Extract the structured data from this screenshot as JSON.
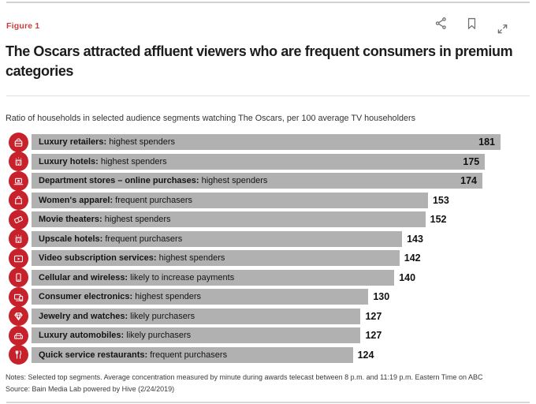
{
  "figure_label": "Figure 1",
  "toolbar": {
    "icons": [
      "share-icon",
      "bookmark-icon",
      "expand-icon"
    ]
  },
  "title": "The Oscars attracted affluent viewers who are frequent consumers in premium categories",
  "subtitle": "Ratio of households in selected audience segments watching The Oscars, per 100 average TV householders",
  "chart_data": {
    "type": "bar",
    "orientation": "horizontal",
    "title": "Ratio of households in selected audience segments watching The Oscars, per 100 average TV householders",
    "xlabel": "",
    "ylabel": "",
    "xlim": [
      0,
      181
    ],
    "grid": false,
    "legend": false,
    "categories": [
      "Luxury retailers",
      "Luxury hotels",
      "Department stores – online purchases",
      "Women's apparel",
      "Movie theaters",
      "Upscale hotels",
      "Video subscription services",
      "Cellular and wireless",
      "Consumer electronics",
      "Jewelry and watches",
      "Luxury automobiles",
      "Quick service restaurants"
    ],
    "descriptions": [
      "highest spenders",
      "highest spenders",
      "highest spenders",
      "frequent purchasers",
      "highest spenders",
      "frequent purchasers",
      "highest spenders",
      "likely to increase payments",
      "highest spenders",
      "likely purchasers",
      "likely purchasers",
      "frequent purchasers"
    ],
    "values": [
      181,
      175,
      174,
      153,
      152,
      143,
      142,
      140,
      130,
      127,
      127,
      124
    ],
    "icons": [
      "handbag",
      "hotel-building",
      "online-store",
      "shopping-bag",
      "movie-ticket",
      "hotel-building",
      "video-play",
      "smartphone",
      "consumer-devices",
      "diamond",
      "car",
      "cutlery"
    ],
    "bar_color": "#b1b1b1",
    "icon_color": "#c7212b"
  },
  "notes": "Notes: Selected top segments. Average concentration measured by minute during awards telecast between 8 p.m. and 11:19 p.m. Eastern Time on ABC",
  "source": "Source: Bain Media Lab powered by Hive (2/24/2019)",
  "colors": {
    "brand_red": "#c7212b",
    "figure_label_red": "#cb3e3e",
    "bar_gray": "#b1b1b1",
    "toolbar_gray": "#6d7075",
    "rule_gray": "#d2d2d2"
  }
}
